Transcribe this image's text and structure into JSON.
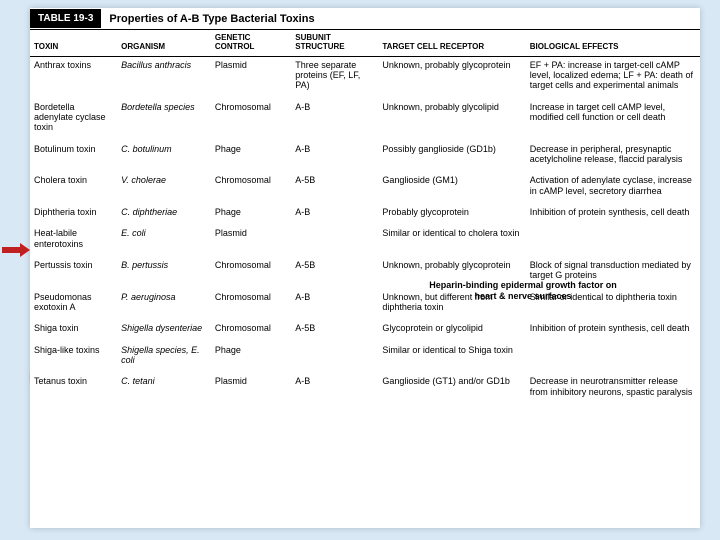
{
  "title": {
    "label": "TABLE 19-3",
    "text": "Properties of A-B Type Bacterial Toxins"
  },
  "columns": [
    "TOXIN",
    "ORGANISM",
    "GENETIC CONTROL",
    "SUBUNIT STRUCTURE",
    "TARGET CELL RECEPTOR",
    "BIOLOGICAL EFFECTS"
  ],
  "rows": [
    {
      "toxin": "Anthrax toxins",
      "organism": "Bacillus anthracis",
      "genetic": "Plasmid",
      "subunit": "Three separate proteins (EF, LF, PA)",
      "receptor": "Unknown, probably glycoprotein",
      "effects": "EF + PA: increase in target-cell cAMP level, localized edema; LF + PA: death of target cells and experimental animals"
    },
    {
      "toxin": "Bordetella adenylate cyclase toxin",
      "organism": "Bordetella species",
      "genetic": "Chromosomal",
      "subunit": "A-B",
      "receptor": "Unknown, probably glycolipid",
      "effects": "Increase in target cell cAMP level, modified cell function or cell death"
    },
    {
      "toxin": "Botulinum toxin",
      "organism": "C. botulinum",
      "genetic": "Phage",
      "subunit": "A-B",
      "receptor": "Possibly ganglioside (GD1b)",
      "effects": "Decrease in peripheral, presynaptic acetylcholine release, flaccid paralysis"
    },
    {
      "toxin": "Cholera toxin",
      "organism": "V. cholerae",
      "genetic": "Chromosomal",
      "subunit": "A-5B",
      "receptor": "Ganglioside (GM1)",
      "effects": "Activation of adenylate cyclase, increase in cAMP level, secretory diarrhea"
    },
    {
      "toxin": "Diphtheria toxin",
      "organism": "C. diphtheriae",
      "genetic": "Phage",
      "subunit": "A-B",
      "receptor": "Probably glycoprotein",
      "effects": "Inhibition of protein synthesis, cell death"
    },
    {
      "toxin": "Heat-labile enterotoxins",
      "organism": "E. coli",
      "genetic": "Plasmid",
      "subunit": "",
      "receptor": "Similar or identical to cholera toxin",
      "effects": ""
    },
    {
      "toxin": "Pertussis toxin",
      "organism": "B. pertussis",
      "genetic": "Chromosomal",
      "subunit": "A-5B",
      "receptor": "Unknown, probably glycoprotein",
      "effects": "Block of signal transduction mediated by target G proteins"
    },
    {
      "toxin": "Pseudomonas exotoxin A",
      "organism": "P. aeruginosa",
      "genetic": "Chromosomal",
      "subunit": "A-B",
      "receptor": "Unknown, but different from diphtheria toxin",
      "effects": "Similar or identical to diphtheria toxin"
    },
    {
      "toxin": "Shiga toxin",
      "organism": "Shigella dysenteriae",
      "genetic": "Chromosomal",
      "subunit": "A-5B",
      "receptor": "Glycoprotein or glycolipid",
      "effects": "Inhibition of protein synthesis, cell death"
    },
    {
      "toxin": "Shiga-like toxins",
      "organism": "Shigella species, E. coli",
      "genetic": "Phage",
      "subunit": "",
      "receptor": "Similar or identical to Shiga toxin",
      "effects": ""
    },
    {
      "toxin": "Tetanus toxin",
      "organism": "C. tetani",
      "genetic": "Plasmid",
      "subunit": "A-B",
      "receptor": "Ganglioside (GT1) and/or GD1b",
      "effects": "Decrease in neurotransmitter release from inhibitory neurons, spastic paralysis"
    }
  ],
  "annotation": "Heparin-binding epidermal growth factor on heart & nerve surfaces",
  "style": {
    "page_bg": "#ffffff",
    "body_bg": "#d8e8f4",
    "bar_bg": "#000000",
    "bar_fg": "#ffffff",
    "arrow_color": "#c02020",
    "header_fontsize": 8,
    "body_fontsize": 9,
    "title_fontsize": 11
  }
}
